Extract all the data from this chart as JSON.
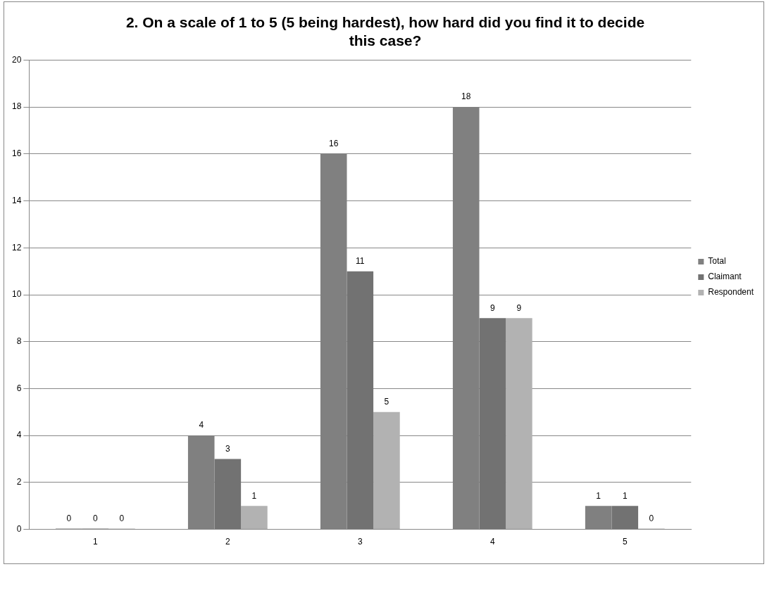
{
  "chart_data": {
    "type": "bar",
    "title": "2. On a scale of 1 to 5 (5 being hardest), how hard did you find it to decide this case?",
    "categories": [
      "1",
      "2",
      "3",
      "4",
      "5"
    ],
    "series": [
      {
        "name": "Total",
        "color": "#808080",
        "values": [
          0,
          4,
          16,
          18,
          1
        ]
      },
      {
        "name": "Claimant",
        "color": "#727272",
        "values": [
          0,
          3,
          11,
          9,
          1
        ]
      },
      {
        "name": "Respondent",
        "color": "#b2b2b2",
        "values": [
          0,
          1,
          5,
          9,
          0
        ]
      }
    ],
    "ylim": [
      0,
      20
    ],
    "yticks": [
      0,
      2,
      4,
      6,
      8,
      10,
      12,
      14,
      16,
      18,
      20
    ],
    "grid": "y",
    "legend": "right",
    "data_labels": true
  }
}
